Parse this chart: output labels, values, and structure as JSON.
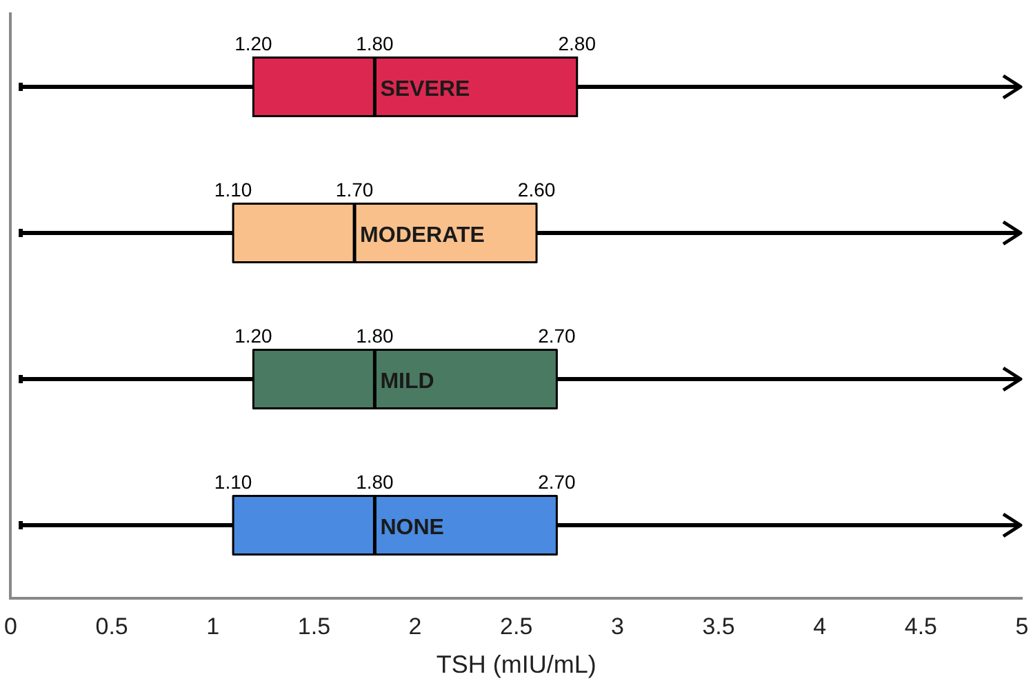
{
  "chart_data": {
    "type": "box",
    "orientation": "horizontal",
    "xlabel": "TSH (mIU/mL)",
    "categories": [
      "SEVERE",
      "MODERATE",
      "MILD",
      "NONE"
    ],
    "colors": [
      "#dc2850",
      "#f9c08c",
      "#4a7a62",
      "#4a8ae0"
    ],
    "boxes": [
      {
        "low": 0.05,
        "q1": 1.2,
        "median": 1.8,
        "q3": 2.8,
        "high": 5
      },
      {
        "low": 0.05,
        "q1": 1.1,
        "median": 1.7,
        "q3": 2.6,
        "high": 5
      },
      {
        "low": 0.05,
        "q1": 1.2,
        "median": 1.8,
        "q3": 2.7,
        "high": 5
      },
      {
        "low": 0.05,
        "q1": 1.1,
        "median": 1.8,
        "q3": 2.7,
        "high": 5
      }
    ],
    "value_labels": [
      [
        "1.20",
        "1.80",
        "2.80"
      ],
      [
        "1.10",
        "1.70",
        "2.60"
      ],
      [
        "1.20",
        "1.80",
        "2.70"
      ],
      [
        "1.10",
        "1.80",
        "2.70"
      ]
    ],
    "xlim": [
      0,
      5
    ],
    "xticks": [
      0,
      0.5,
      1,
      1.5,
      2,
      2.5,
      3,
      3.5,
      4,
      4.5,
      5
    ],
    "tick_labels": "x",
    "grid": false
  }
}
